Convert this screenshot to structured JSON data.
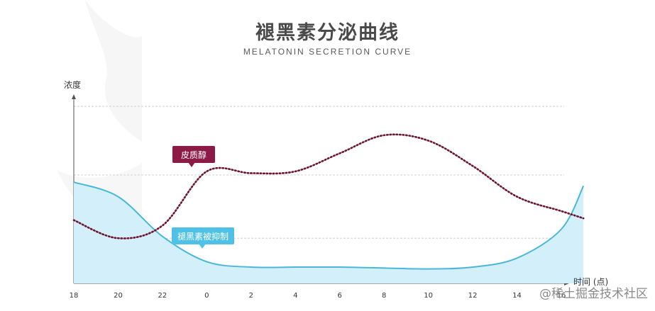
{
  "title": "褪黑素分泌曲线",
  "subtitle": "MELATONIN SECRETION CURVE",
  "watermark": "@稀土掘金技术社区",
  "chart_data": {
    "type": "area",
    "ylabel": "浓度",
    "xlabel": "时间 (点)",
    "x_ticks": [
      "18",
      "20",
      "22",
      "0",
      "2",
      "4",
      "6",
      "8",
      "10",
      "12",
      "14",
      "16"
    ],
    "grid": true,
    "series": [
      {
        "name": "皮质醇",
        "style": "dotted-line",
        "color": "#6b1530",
        "x": [
          "18",
          "20",
          "22",
          "0",
          "2",
          "4",
          "6",
          "8",
          "10",
          "12",
          "14",
          "16",
          "17"
        ],
        "values": [
          0.35,
          0.25,
          0.32,
          0.62,
          0.61,
          0.62,
          0.72,
          0.82,
          0.79,
          0.65,
          0.48,
          0.4,
          0.36
        ]
      },
      {
        "name": "褪黑素被抑制",
        "style": "filled-area",
        "color": "#49b8d8",
        "fill": "#d3eff9",
        "x": [
          "18",
          "20",
          "22",
          "0",
          "2",
          "4",
          "6",
          "8",
          "10",
          "12",
          "14",
          "16",
          "17"
        ],
        "values": [
          0.56,
          0.48,
          0.26,
          0.12,
          0.09,
          0.09,
          0.09,
          0.085,
          0.08,
          0.09,
          0.14,
          0.3,
          0.54
        ]
      }
    ],
    "annotations": [
      {
        "text": "皮质醇",
        "color": "#8c1a44"
      },
      {
        "text": "褪黑素被抑制",
        "color": "#4fc1e6"
      }
    ]
  }
}
